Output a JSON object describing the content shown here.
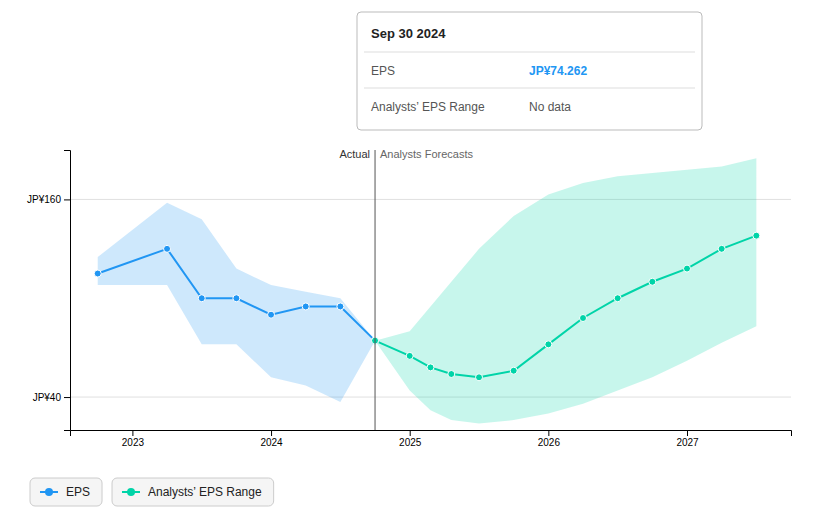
{
  "chart_data": {
    "type": "line",
    "xlim": [
      2022.55,
      2027.75
    ],
    "xticks": [
      2023,
      2024,
      2025,
      2026,
      2027
    ],
    "ylim": [
      20,
      190
    ],
    "yticks": [
      {
        "value": 40,
        "label": "JP¥40"
      },
      {
        "value": 160,
        "label": "JP¥160"
      }
    ],
    "grid": true,
    "legend": "lower left",
    "marker": "circle",
    "series": [
      {
        "name": "EPS",
        "color": "#2196f3",
        "x": [
          2022.75,
          2023.25,
          2023.5,
          2023.75,
          2024.0,
          2024.25,
          2024.5,
          2024.75
        ],
        "values": [
          115,
          130,
          100,
          100,
          90,
          95,
          95,
          74.262
        ],
        "band_lower": [
          108,
          108,
          72,
          72,
          52,
          47,
          37,
          74.262
        ],
        "band_upper": [
          125,
          158,
          148,
          118,
          108,
          104,
          100,
          74.262
        ]
      },
      {
        "name": "Analysts’ EPS Range",
        "color": "#00d4a8",
        "x": [
          2024.75,
          2025.0,
          2025.15,
          2025.3,
          2025.5,
          2025.75,
          2026.0,
          2026.25,
          2026.5,
          2026.75,
          2027.0,
          2027.25,
          2027.5
        ],
        "values": [
          74.262,
          65,
          58,
          54,
          52,
          56,
          72,
          88,
          100,
          110,
          118,
          130,
          138
        ],
        "band_lower": [
          74.262,
          44,
          32,
          26,
          24,
          26,
          30,
          36,
          44,
          52,
          62,
          73,
          83
        ],
        "band_upper": [
          74.262,
          80,
          95,
          110,
          130,
          150,
          163,
          170,
          174,
          176,
          178,
          180,
          185
        ]
      }
    ],
    "annotations": [
      {
        "text": "Actual",
        "x": 2024.75,
        "y": 185
      },
      {
        "text": "Analysts Forecasts",
        "x": 2024.75,
        "y": 185
      }
    ],
    "tooltip": {
      "title": "Sep 30 2024",
      "rows": [
        {
          "label": "EPS",
          "value": "JP¥74.262"
        },
        {
          "label": "Analysts’ EPS Range",
          "value": "No data"
        }
      ]
    }
  }
}
